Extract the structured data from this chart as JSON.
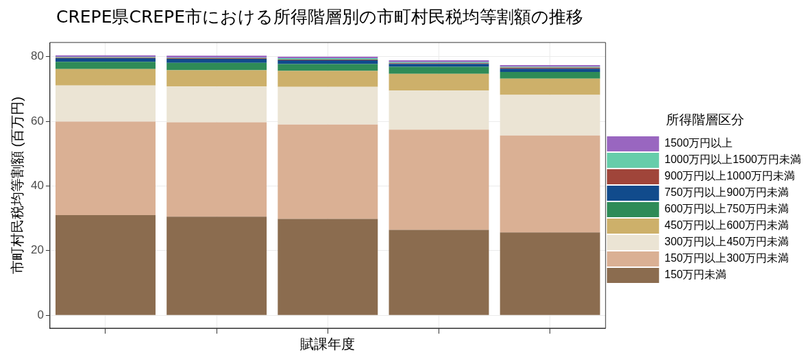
{
  "chart_data": {
    "type": "bar",
    "stacked": true,
    "title": "CREPE県CREPE市における所得階層別の市町村民税均等割額の推移",
    "xlabel": "賦課年度",
    "ylabel": "市町村民税均等割額 (百万円)",
    "legend_title": "所得階層区分",
    "legend": "right",
    "grid": true,
    "tick_labels": "y",
    "categories": [
      null,
      null,
      null,
      null,
      null
    ],
    "ylim": [
      -4,
      84.4
    ],
    "yticks": [
      0,
      20,
      40,
      60,
      80
    ],
    "series": [
      {
        "name": "150万円未満",
        "color": "#8b6c4f",
        "values": [
          31.0,
          30.5,
          29.8,
          26.4,
          25.6
        ]
      },
      {
        "name": "150万円以上300万円未満",
        "color": "#dab094",
        "values": [
          28.9,
          29.2,
          29.2,
          31.0,
          30.0
        ]
      },
      {
        "name": "300万円以上450万円未満",
        "color": "#ebe4d4",
        "values": [
          11.2,
          11.1,
          11.7,
          12.1,
          12.6
        ]
      },
      {
        "name": "450万円以上600万円未満",
        "color": "#cdb06a",
        "values": [
          5.1,
          5.0,
          4.9,
          5.2,
          5.0
        ]
      },
      {
        "name": "600万円以上750万円未満",
        "color": "#2e8b57",
        "values": [
          2.2,
          2.3,
          2.1,
          2.2,
          2.1
        ]
      },
      {
        "name": "750万円以上900万円未満",
        "color": "#114b8c",
        "values": [
          1.1,
          1.2,
          1.2,
          0.9,
          1.0
        ]
      },
      {
        "name": "900万円以上1000万円未満",
        "color": "#a0453a",
        "values": [
          0.2,
          0.2,
          0.2,
          0.2,
          0.3
        ]
      },
      {
        "name": "1000万円以上1500万円未満",
        "color": "#66cdaa",
        "values": [
          0.2,
          0.2,
          0.4,
          0.3,
          0.3
        ]
      },
      {
        "name": "1500万円以上",
        "color": "#9966c0",
        "values": [
          0.5,
          0.6,
          0.5,
          0.6,
          0.5
        ]
      }
    ]
  }
}
